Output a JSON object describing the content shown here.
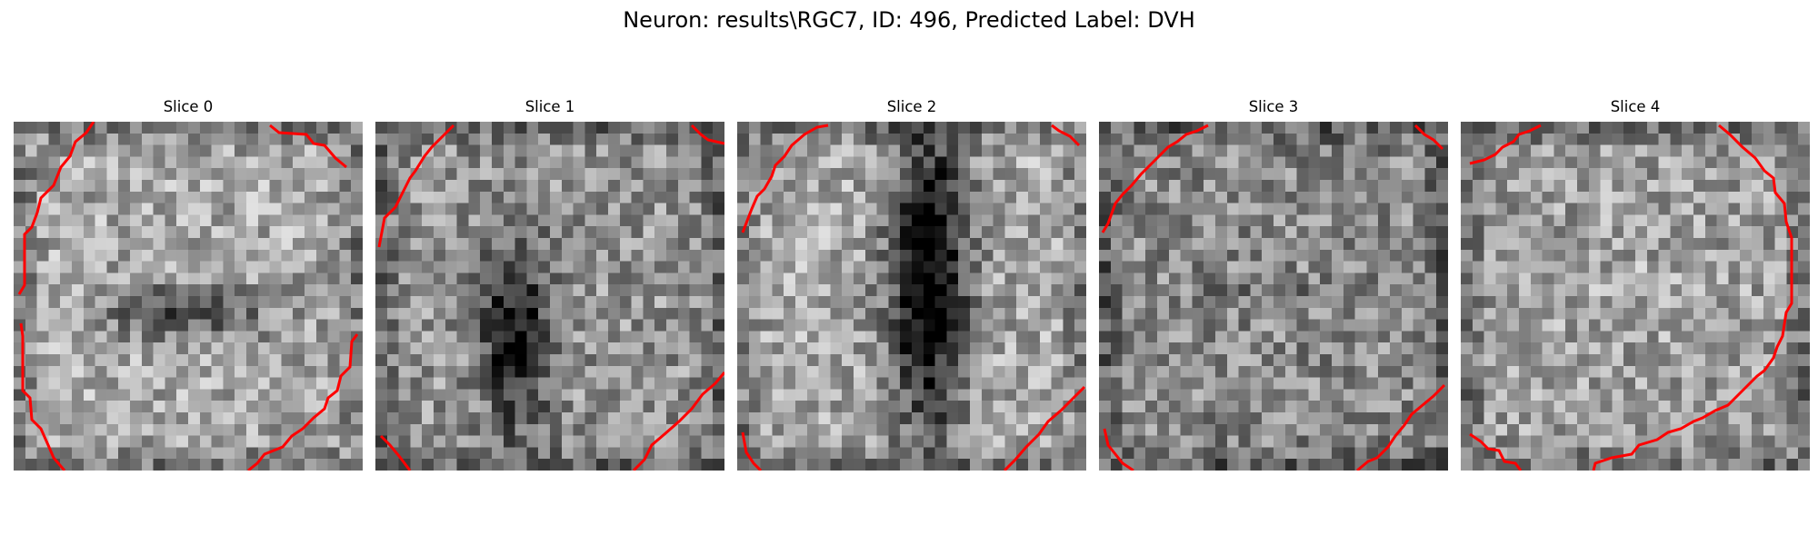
{
  "figure": {
    "title": "Neuron: results\\RGC7, ID: 496, Predicted Label: DVH"
  },
  "slices": [
    {
      "title": "Slice 0",
      "seed": 11,
      "blobs": [
        [
          0.5,
          0.55,
          0.3,
          0.1,
          -0.35
        ]
      ],
      "base": 0.66,
      "contour_color": "#ff0000"
    },
    {
      "title": "Slice 1",
      "seed": 23,
      "blobs": [
        [
          0.4,
          0.62,
          0.12,
          0.32,
          -0.55
        ]
      ],
      "base": 0.58,
      "contour_color": "#ff0000"
    },
    {
      "title": "Slice 2",
      "seed": 37,
      "blobs": [
        [
          0.55,
          0.45,
          0.14,
          0.55,
          -0.75
        ]
      ],
      "base": 0.66,
      "contour_color": "#ff0000"
    },
    {
      "title": "Slice 3",
      "seed": 41,
      "blobs": [
        [
          0.5,
          0.5,
          0.3,
          0.05,
          -0.1
        ]
      ],
      "base": 0.54,
      "contour_color": "#ff0000"
    },
    {
      "title": "Slice 4",
      "seed": 53,
      "blobs": [
        [
          0.45,
          0.5,
          0.35,
          0.15,
          0.05
        ]
      ],
      "base": 0.62,
      "contour_color": "#ff0000"
    }
  ]
}
